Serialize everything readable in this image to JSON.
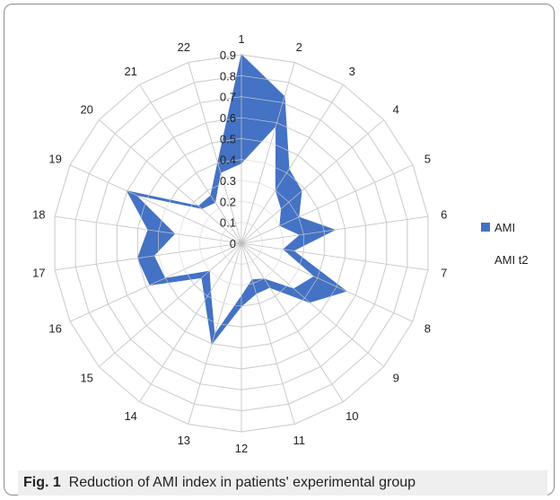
{
  "caption": {
    "label": "Fig. 1",
    "text": "Reduction of AMI index in patients' experimental group"
  },
  "chart_data": {
    "type": "radar",
    "categories": [
      "1",
      "2",
      "3",
      "4",
      "5",
      "6",
      "7",
      "8",
      "9",
      "10",
      "11",
      "12",
      "13",
      "14",
      "15",
      "16",
      "17",
      "18",
      "19",
      "20",
      "21",
      "22"
    ],
    "radial_ticks": [
      "0",
      "0.1",
      "0.2",
      "0.3",
      "0.4",
      "0.5",
      "0.6",
      "0.7",
      "0.8",
      "0.9"
    ],
    "rmax": 0.9,
    "series": [
      {
        "name": "AMI",
        "color": "#4472c4",
        "values": [
          0.9,
          0.73,
          0.42,
          0.38,
          0.3,
          0.45,
          0.25,
          0.55,
          0.43,
          0.25,
          0.25,
          0.3,
          0.5,
          0.32,
          0.25,
          0.48,
          0.5,
          0.45,
          0.6,
          0.27,
          0.27,
          0.4
        ]
      },
      {
        "name": "AMI t2",
        "color": "#ffffff",
        "values": [
          0.38,
          0.58,
          0.3,
          0.25,
          0.2,
          0.28,
          0.2,
          0.38,
          0.33,
          0.2,
          0.18,
          0.25,
          0.45,
          0.27,
          0.2,
          0.4,
          0.42,
          0.32,
          0.55,
          0.25,
          0.23,
          0.35
        ]
      }
    ]
  }
}
